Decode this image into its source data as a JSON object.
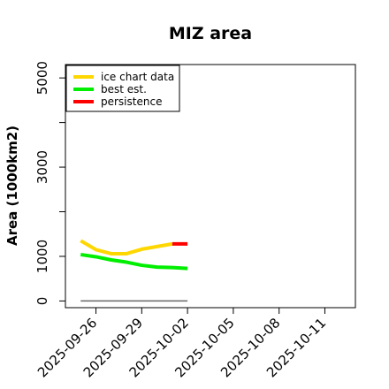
{
  "chart_data": {
    "type": "line",
    "title": "MIZ area",
    "xlabel": "",
    "ylabel": "Area (1000km2)",
    "x_ticks": [
      "2025-09-26",
      "2025-09-29",
      "2025-10-02",
      "2025-10-05",
      "2025-10-08",
      "2025-10-11"
    ],
    "xlim": [
      "2025-09-24",
      "2025-10-13"
    ],
    "ylim": [
      -150,
      5300
    ],
    "y_ticks": [
      0,
      1000,
      3000,
      5000
    ],
    "y_minor_ticks": [
      0,
      1000,
      2000,
      3000,
      4000,
      5000
    ],
    "grid": false,
    "legend_position": "top-left",
    "series": [
      {
        "name": "ice chart data",
        "color": "#FFD700",
        "points": [
          [
            "2025-09-25",
            1350
          ],
          [
            "2025-09-26",
            1150
          ],
          [
            "2025-09-27",
            1060
          ],
          [
            "2025-09-28",
            1060
          ],
          [
            "2025-09-29",
            1160
          ],
          [
            "2025-09-30",
            1220
          ],
          [
            "2025-10-01",
            1280
          ]
        ]
      },
      {
        "name": "best est.",
        "color": "#00EE00",
        "points": [
          [
            "2025-09-25",
            1040
          ],
          [
            "2025-09-26",
            990
          ],
          [
            "2025-09-27",
            920
          ],
          [
            "2025-09-28",
            870
          ],
          [
            "2025-09-29",
            800
          ],
          [
            "2025-09-30",
            760
          ],
          [
            "2025-10-01",
            750
          ],
          [
            "2025-10-02",
            730
          ]
        ]
      },
      {
        "name": "persistence",
        "color": "#FF0000",
        "points": [
          [
            "2025-10-01",
            1280
          ],
          [
            "2025-10-02",
            1280
          ]
        ]
      }
    ],
    "baseline": {
      "color": "#666666",
      "points": [
        [
          "2025-09-25",
          0
        ],
        [
          "2025-10-02",
          0
        ]
      ]
    }
  }
}
